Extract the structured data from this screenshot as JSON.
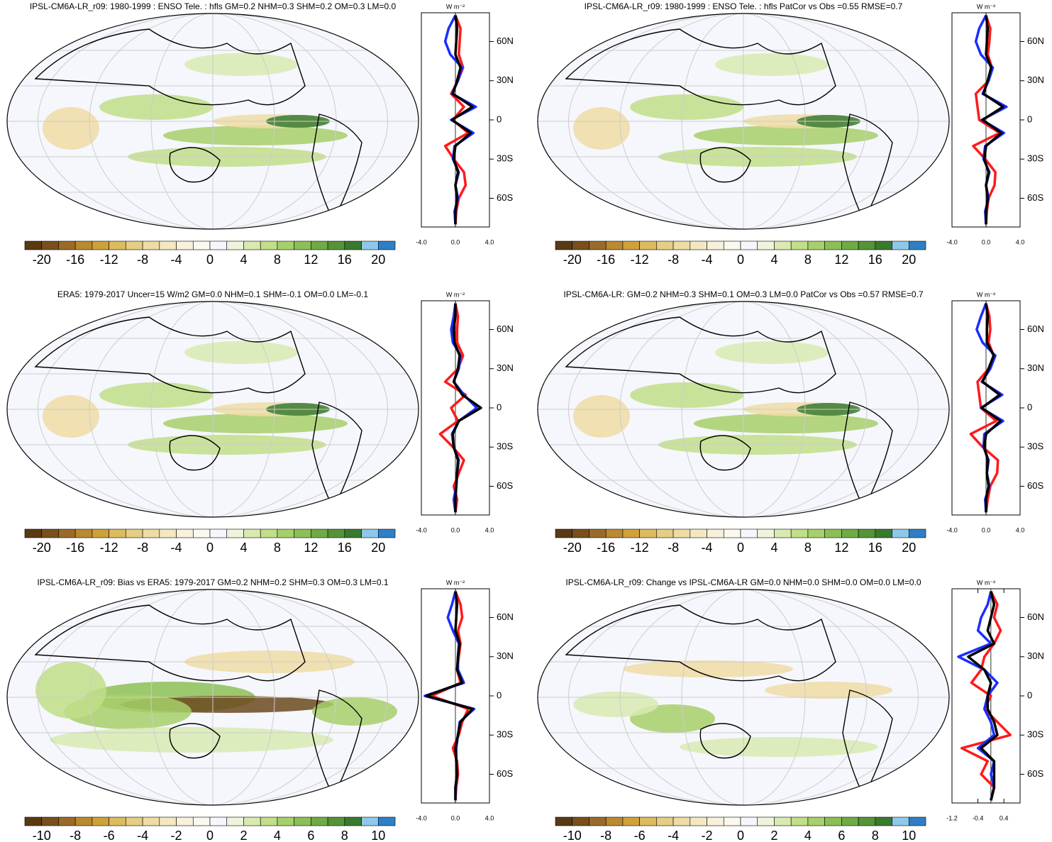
{
  "chart_data": [
    {
      "type": "line",
      "title": "IPSL-CM6A-LR_r09: 1980-1999 : ENSO Tele. : hfls GM=0.2 NHM=0.3 SHM=0.2 OM=0.3 LM=0.0",
      "x_label": "W m⁻²",
      "lat": [
        -80,
        -70,
        -60,
        -50,
        -40,
        -30,
        -20,
        -10,
        0,
        10,
        20,
        30,
        40,
        50,
        60,
        70,
        80
      ],
      "xlim": [
        -4,
        4
      ],
      "xticks": [
        {
          "value": -4,
          "label": "-4.0"
        },
        {
          "value": 0,
          "label": "0.0"
        },
        {
          "value": 4,
          "label": "4.0"
        }
      ],
      "ylim": [
        -82,
        82
      ],
      "yticks": [
        {
          "value": -60,
          "label": "60S"
        },
        {
          "value": -30,
          "label": "30S"
        },
        0,
        {
          "value": 30,
          "label": "30N"
        },
        {
          "value": 60,
          "label": "60N"
        }
      ],
      "series": [
        {
          "name": "red",
          "color": "#ff1a1a",
          "values": [
            0,
            0.1,
            0.4,
            1.2,
            1.0,
            -0.2,
            -1.2,
            1.5,
            -0.3,
            1.0,
            -0.5,
            0.3,
            0.9,
            0.4,
            0.5,
            0.6,
            0
          ]
        },
        {
          "name": "blue",
          "color": "#1a2dff",
          "values": [
            0,
            -0.1,
            0.3,
            0,
            0.4,
            -0.3,
            -0.1,
            2.1,
            -0.5,
            2.4,
            -0.4,
            0.3,
            0.8,
            -0.6,
            -1.2,
            -0.8,
            0
          ]
        },
        {
          "name": "black",
          "color": "#000000",
          "values": [
            0,
            0,
            0.2,
            0,
            0.3,
            -0.2,
            0,
            1.8,
            -0.4,
            2.0,
            -0.3,
            0.2,
            0.6,
            0,
            0.1,
            0.2,
            0
          ]
        }
      ],
      "colorbar": {
        "lim": [
          -22,
          22
        ],
        "ticks": [
          -20,
          -16,
          -12,
          -8,
          -4,
          0,
          4,
          8,
          12,
          16,
          20
        ],
        "colors": [
          "#5a3a14",
          "#7a4f1f",
          "#9b6a2a",
          "#b98a2f",
          "#cfa13a",
          "#dcba5e",
          "#e6cd84",
          "#eedca4",
          "#f3e8c2",
          "#f7f0da",
          "#fbf8ee",
          "#f5f7fc",
          "#eef4dc",
          "#d8eab0",
          "#c1de88",
          "#a7cf6a",
          "#8cbf55",
          "#6fab45",
          "#549438",
          "#3a7a2e",
          "#8ec9ea",
          "#2f7fc6"
        ]
      }
    },
    {
      "type": "line",
      "title": "IPSL-CM6A-LR_r09: 1980-1999 : ENSO Tele. : hfls PatCor vs Obs =0.55 RMSE=0.7",
      "x_label": "W m⁻²",
      "lat": [
        -80,
        -70,
        -60,
        -50,
        -40,
        -30,
        -20,
        -10,
        0,
        10,
        20,
        30,
        40,
        50,
        60,
        70,
        80
      ],
      "xlim": [
        -4,
        4
      ],
      "xticks": [
        {
          "value": -4,
          "label": "-4.0"
        },
        {
          "value": 0,
          "label": "0.0"
        },
        {
          "value": 4,
          "label": "4.0"
        }
      ],
      "ylim": [
        -82,
        82
      ],
      "yticks": [
        {
          "value": -60,
          "label": "60S"
        },
        {
          "value": -30,
          "label": "30S"
        },
        0,
        {
          "value": 30,
          "label": "30N"
        },
        {
          "value": 60,
          "label": "60N"
        }
      ],
      "series": [
        {
          "name": "red",
          "color": "#ff1a1a",
          "values": [
            0,
            0.1,
            0.3,
            1.0,
            1.1,
            -0.1,
            -1.5,
            1.6,
            -0.8,
            -1.0,
            -1.2,
            0.3,
            0.7,
            0.2,
            0.4,
            0.5,
            0
          ]
        },
        {
          "name": "blue",
          "color": "#1a2dff",
          "values": [
            0,
            -0.1,
            0.3,
            0,
            0.4,
            -0.3,
            -0.1,
            2.1,
            -0.5,
            2.4,
            -0.4,
            0.3,
            0.8,
            -0.6,
            -1.2,
            -0.8,
            0
          ]
        },
        {
          "name": "black",
          "color": "#000000",
          "values": [
            0,
            0,
            0.2,
            0,
            0.3,
            -0.2,
            0,
            1.8,
            -0.4,
            2.0,
            -0.3,
            0.2,
            0.6,
            0,
            0.1,
            0.2,
            0
          ]
        }
      ],
      "colorbar": {
        "lim": [
          -22,
          22
        ],
        "ticks": [
          -20,
          -16,
          -12,
          -8,
          -4,
          0,
          4,
          8,
          12,
          16,
          20
        ],
        "colors": [
          "#5a3a14",
          "#7a4f1f",
          "#9b6a2a",
          "#b98a2f",
          "#cfa13a",
          "#dcba5e",
          "#e6cd84",
          "#eedca4",
          "#f3e8c2",
          "#f7f0da",
          "#fbf8ee",
          "#f5f7fc",
          "#eef4dc",
          "#d8eab0",
          "#c1de88",
          "#a7cf6a",
          "#8cbf55",
          "#6fab45",
          "#549438",
          "#3a7a2e",
          "#8ec9ea",
          "#2f7fc6"
        ]
      }
    },
    {
      "type": "line",
      "title": "ERA5: 1979-2017 Uncer=15 W/m2 GM=0.0 NHM=0.1 SHM=-0.1 OM=0.0 LM=-0.1",
      "x_label": "W m⁻²",
      "lat": [
        -80,
        -70,
        -60,
        -50,
        -40,
        -30,
        -20,
        -10,
        0,
        10,
        20,
        30,
        40,
        50,
        60,
        70,
        80
      ],
      "xlim": [
        -4,
        4
      ],
      "xticks": [
        {
          "value": -4,
          "label": "-4.0"
        },
        {
          "value": 0,
          "label": "0.0"
        },
        {
          "value": 4,
          "label": "4.0"
        }
      ],
      "ylim": [
        -82,
        82
      ],
      "yticks": [
        {
          "value": -60,
          "label": "60S"
        },
        {
          "value": -30,
          "label": "30S"
        },
        0,
        {
          "value": 30,
          "label": "30N"
        },
        {
          "value": 60,
          "label": "60N"
        }
      ],
      "series": [
        {
          "name": "red",
          "color": "#ff1a1a",
          "values": [
            0,
            0.2,
            -0.2,
            0.4,
            1.0,
            -0.3,
            -1.8,
            0.3,
            -0.5,
            1.2,
            -1.2,
            0.3,
            0.9,
            0.2,
            0.2,
            0.3,
            0
          ]
        },
        {
          "name": "blue",
          "color": "#1a2dff",
          "values": [
            0,
            -0.2,
            0.1,
            0.2,
            0.4,
            -0.2,
            -0.4,
            0.4,
            2.5,
            1.0,
            -0.2,
            0.4,
            0.6,
            -0.3,
            -0.5,
            -0.2,
            0
          ]
        },
        {
          "name": "black",
          "color": "#000000",
          "values": [
            0,
            0,
            0.1,
            0.2,
            0.3,
            -0.2,
            -0.3,
            0.4,
            3.0,
            0.8,
            -0.2,
            0.3,
            0.5,
            -0.1,
            -0.2,
            0,
            0
          ]
        }
      ],
      "colorbar": {
        "lim": [
          -22,
          22
        ],
        "ticks": [
          -20,
          -16,
          -12,
          -8,
          -4,
          0,
          4,
          8,
          12,
          16,
          20
        ],
        "colors": [
          "#5a3a14",
          "#7a4f1f",
          "#9b6a2a",
          "#b98a2f",
          "#cfa13a",
          "#dcba5e",
          "#e6cd84",
          "#eedca4",
          "#f3e8c2",
          "#f7f0da",
          "#fbf8ee",
          "#f5f7fc",
          "#eef4dc",
          "#d8eab0",
          "#c1de88",
          "#a7cf6a",
          "#8cbf55",
          "#6fab45",
          "#549438",
          "#3a7a2e",
          "#8ec9ea",
          "#2f7fc6"
        ]
      }
    },
    {
      "type": "line",
      "title": "IPSL-CM6A-LR: GM=0.2 NHM=0.3 SHM=0.1 OM=0.3 LM=0.0 PatCor vs Obs =0.57 RMSE=0.7",
      "x_label": "W m⁻²",
      "lat": [
        -80,
        -70,
        -60,
        -50,
        -40,
        -30,
        -20,
        -10,
        0,
        10,
        20,
        30,
        40,
        50,
        60,
        70,
        80
      ],
      "xlim": [
        -4,
        4
      ],
      "xticks": [
        {
          "value": -4,
          "label": "-4.0"
        },
        {
          "value": 0,
          "label": "0.0"
        },
        {
          "value": 4,
          "label": "4.0"
        }
      ],
      "ylim": [
        -82,
        82
      ],
      "yticks": [
        {
          "value": -60,
          "label": "60S"
        },
        {
          "value": -30,
          "label": "30S"
        },
        0,
        {
          "value": 30,
          "label": "30N"
        },
        {
          "value": 60,
          "label": "60N"
        }
      ],
      "series": [
        {
          "name": "red",
          "color": "#ff1a1a",
          "values": [
            0,
            0.2,
            0.5,
            1.3,
            1.4,
            -0.4,
            -1.8,
            1.2,
            -0.6,
            -0.8,
            -1.0,
            0.3,
            0.9,
            0.3,
            0.5,
            0.4,
            0
          ]
        },
        {
          "name": "blue",
          "color": "#1a2dff",
          "values": [
            0,
            -0.1,
            0.4,
            0.1,
            0.3,
            -0.3,
            -0.2,
            2.0,
            -0.6,
            1.9,
            -0.5,
            0.5,
            1.1,
            -0.4,
            -1.1,
            -0.6,
            0
          ]
        },
        {
          "name": "black",
          "color": "#000000",
          "values": [
            0,
            0,
            0.3,
            0.1,
            0.2,
            -0.2,
            0,
            1.7,
            -0.5,
            1.6,
            -0.4,
            0.3,
            0.9,
            0.1,
            0.1,
            0.2,
            0
          ]
        }
      ],
      "colorbar": {
        "lim": [
          -22,
          22
        ],
        "ticks": [
          -20,
          -16,
          -12,
          -8,
          -4,
          0,
          4,
          8,
          12,
          16,
          20
        ],
        "colors": [
          "#5a3a14",
          "#7a4f1f",
          "#9b6a2a",
          "#b98a2f",
          "#cfa13a",
          "#dcba5e",
          "#e6cd84",
          "#eedca4",
          "#f3e8c2",
          "#f7f0da",
          "#fbf8ee",
          "#f5f7fc",
          "#eef4dc",
          "#d8eab0",
          "#c1de88",
          "#a7cf6a",
          "#8cbf55",
          "#6fab45",
          "#549438",
          "#3a7a2e",
          "#8ec9ea",
          "#2f7fc6"
        ]
      }
    },
    {
      "type": "line",
      "title": "IPSL-CM6A-LR_r09: Bias vs ERA5: 1979-2017 GM=0.2 NHM=0.2 SHM=0.3 OM=0.3 LM=0.1",
      "x_label": "W m⁻²",
      "lat": [
        -80,
        -70,
        -60,
        -50,
        -40,
        -30,
        -20,
        -10,
        0,
        10,
        20,
        30,
        40,
        50,
        60,
        70,
        80
      ],
      "xlim": [
        -4,
        4
      ],
      "xticks": [
        {
          "value": -4,
          "label": "-4.0"
        },
        {
          "value": 0,
          "label": "0.0"
        },
        {
          "value": 4,
          "label": "4.0"
        }
      ],
      "ylim": [
        -82,
        82
      ],
      "yticks": [
        {
          "value": -60,
          "label": "60S"
        },
        {
          "value": -30,
          "label": "30S"
        },
        0,
        {
          "value": 30,
          "label": "30N"
        },
        {
          "value": 60,
          "label": "60N"
        }
      ],
      "series": [
        {
          "name": "red",
          "color": "#ff1a1a",
          "values": [
            0,
            0.1,
            0.3,
            0.2,
            -0.3,
            0.4,
            0.8,
            1.5,
            -2.8,
            0.6,
            0.2,
            0.4,
            0.6,
            0.3,
            0.8,
            0.6,
            0
          ]
        },
        {
          "name": "blue",
          "color": "#1a2dff",
          "values": [
            0,
            0,
            0.2,
            0.1,
            0.1,
            0.3,
            0.5,
            2.2,
            -3.6,
            1.0,
            0.3,
            0.3,
            0.4,
            -0.3,
            -0.9,
            -0.4,
            0
          ]
        },
        {
          "name": "black",
          "color": "#000000",
          "values": [
            0,
            0,
            0.2,
            0.1,
            0,
            0.3,
            0.6,
            2.0,
            -3.4,
            0.8,
            0.2,
            0.3,
            0.5,
            0,
            0.1,
            0.2,
            0
          ]
        }
      ],
      "colorbar": {
        "lim": [
          -11,
          11
        ],
        "ticks": [
          -10,
          -8,
          -6,
          -4,
          -2,
          0,
          2,
          4,
          6,
          8,
          10
        ],
        "colors": [
          "#5a3a14",
          "#7a4f1f",
          "#9b6a2a",
          "#b98a2f",
          "#cfa13a",
          "#dcba5e",
          "#e6cd84",
          "#eedca4",
          "#f3e8c2",
          "#f7f0da",
          "#fbf8ee",
          "#f5f7fc",
          "#eef4dc",
          "#d8eab0",
          "#c1de88",
          "#a7cf6a",
          "#8cbf55",
          "#6fab45",
          "#549438",
          "#3a7a2e",
          "#8ec9ea",
          "#2f7fc6"
        ]
      }
    },
    {
      "type": "line",
      "title": "IPSL-CM6A-LR_r09: Change vs IPSL-CM6A-LR GM=0.0 NHM=0.0 SHM=0.0 OM=0.0 LM=0.0",
      "x_label": "W m⁻²",
      "lat": [
        -80,
        -70,
        -60,
        -50,
        -40,
        -30,
        -20,
        -10,
        0,
        10,
        20,
        30,
        40,
        50,
        60,
        70,
        80
      ],
      "xlim": [
        -1.2,
        0.9
      ],
      "xticks": [
        -1.2,
        -0.4,
        0.4
      ],
      "ylim": [
        -82,
        82
      ],
      "yticks": [
        {
          "value": -60,
          "label": "60S"
        },
        {
          "value": -30,
          "label": "30S"
        },
        0,
        {
          "value": 30,
          "label": "30N"
        },
        {
          "value": 60,
          "label": "60N"
        }
      ],
      "series": [
        {
          "name": "red",
          "color": "#ff1a1a",
          "values": [
            0,
            0.1,
            -0.3,
            -0.1,
            -0.9,
            0.6,
            0.2,
            -0.2,
            0,
            -0.6,
            -0.3,
            -0.2,
            0.1,
            0.3,
            0.1,
            0.2,
            0
          ]
        },
        {
          "name": "blue",
          "color": "#1a2dff",
          "values": [
            0,
            0.1,
            0,
            0.1,
            -0.4,
            0.1,
            0,
            -0.2,
            -0.1,
            0.2,
            -0.2,
            -1.0,
            0,
            -0.4,
            -0.3,
            -0.1,
            0
          ]
        },
        {
          "name": "black",
          "color": "#000000",
          "values": [
            0,
            0.1,
            0.1,
            0.1,
            -0.3,
            0.2,
            0.1,
            -0.1,
            -0.1,
            0,
            -0.2,
            -0.7,
            0.1,
            -0.1,
            0,
            0.1,
            0
          ]
        }
      ],
      "colorbar": {
        "lim": [
          -11,
          11
        ],
        "ticks": [
          -10,
          -8,
          -6,
          -4,
          -2,
          0,
          2,
          4,
          6,
          8,
          10
        ],
        "colors": [
          "#5a3a14",
          "#7a4f1f",
          "#9b6a2a",
          "#b98a2f",
          "#cfa13a",
          "#dcba5e",
          "#e6cd84",
          "#eedca4",
          "#f3e8c2",
          "#f7f0da",
          "#fbf8ee",
          "#f5f7fc",
          "#eef4dc",
          "#d8eab0",
          "#c1de88",
          "#a7cf6a",
          "#8cbf55",
          "#6fab45",
          "#549438",
          "#3a7a2e",
          "#8ec9ea",
          "#2f7fc6"
        ]
      }
    }
  ]
}
